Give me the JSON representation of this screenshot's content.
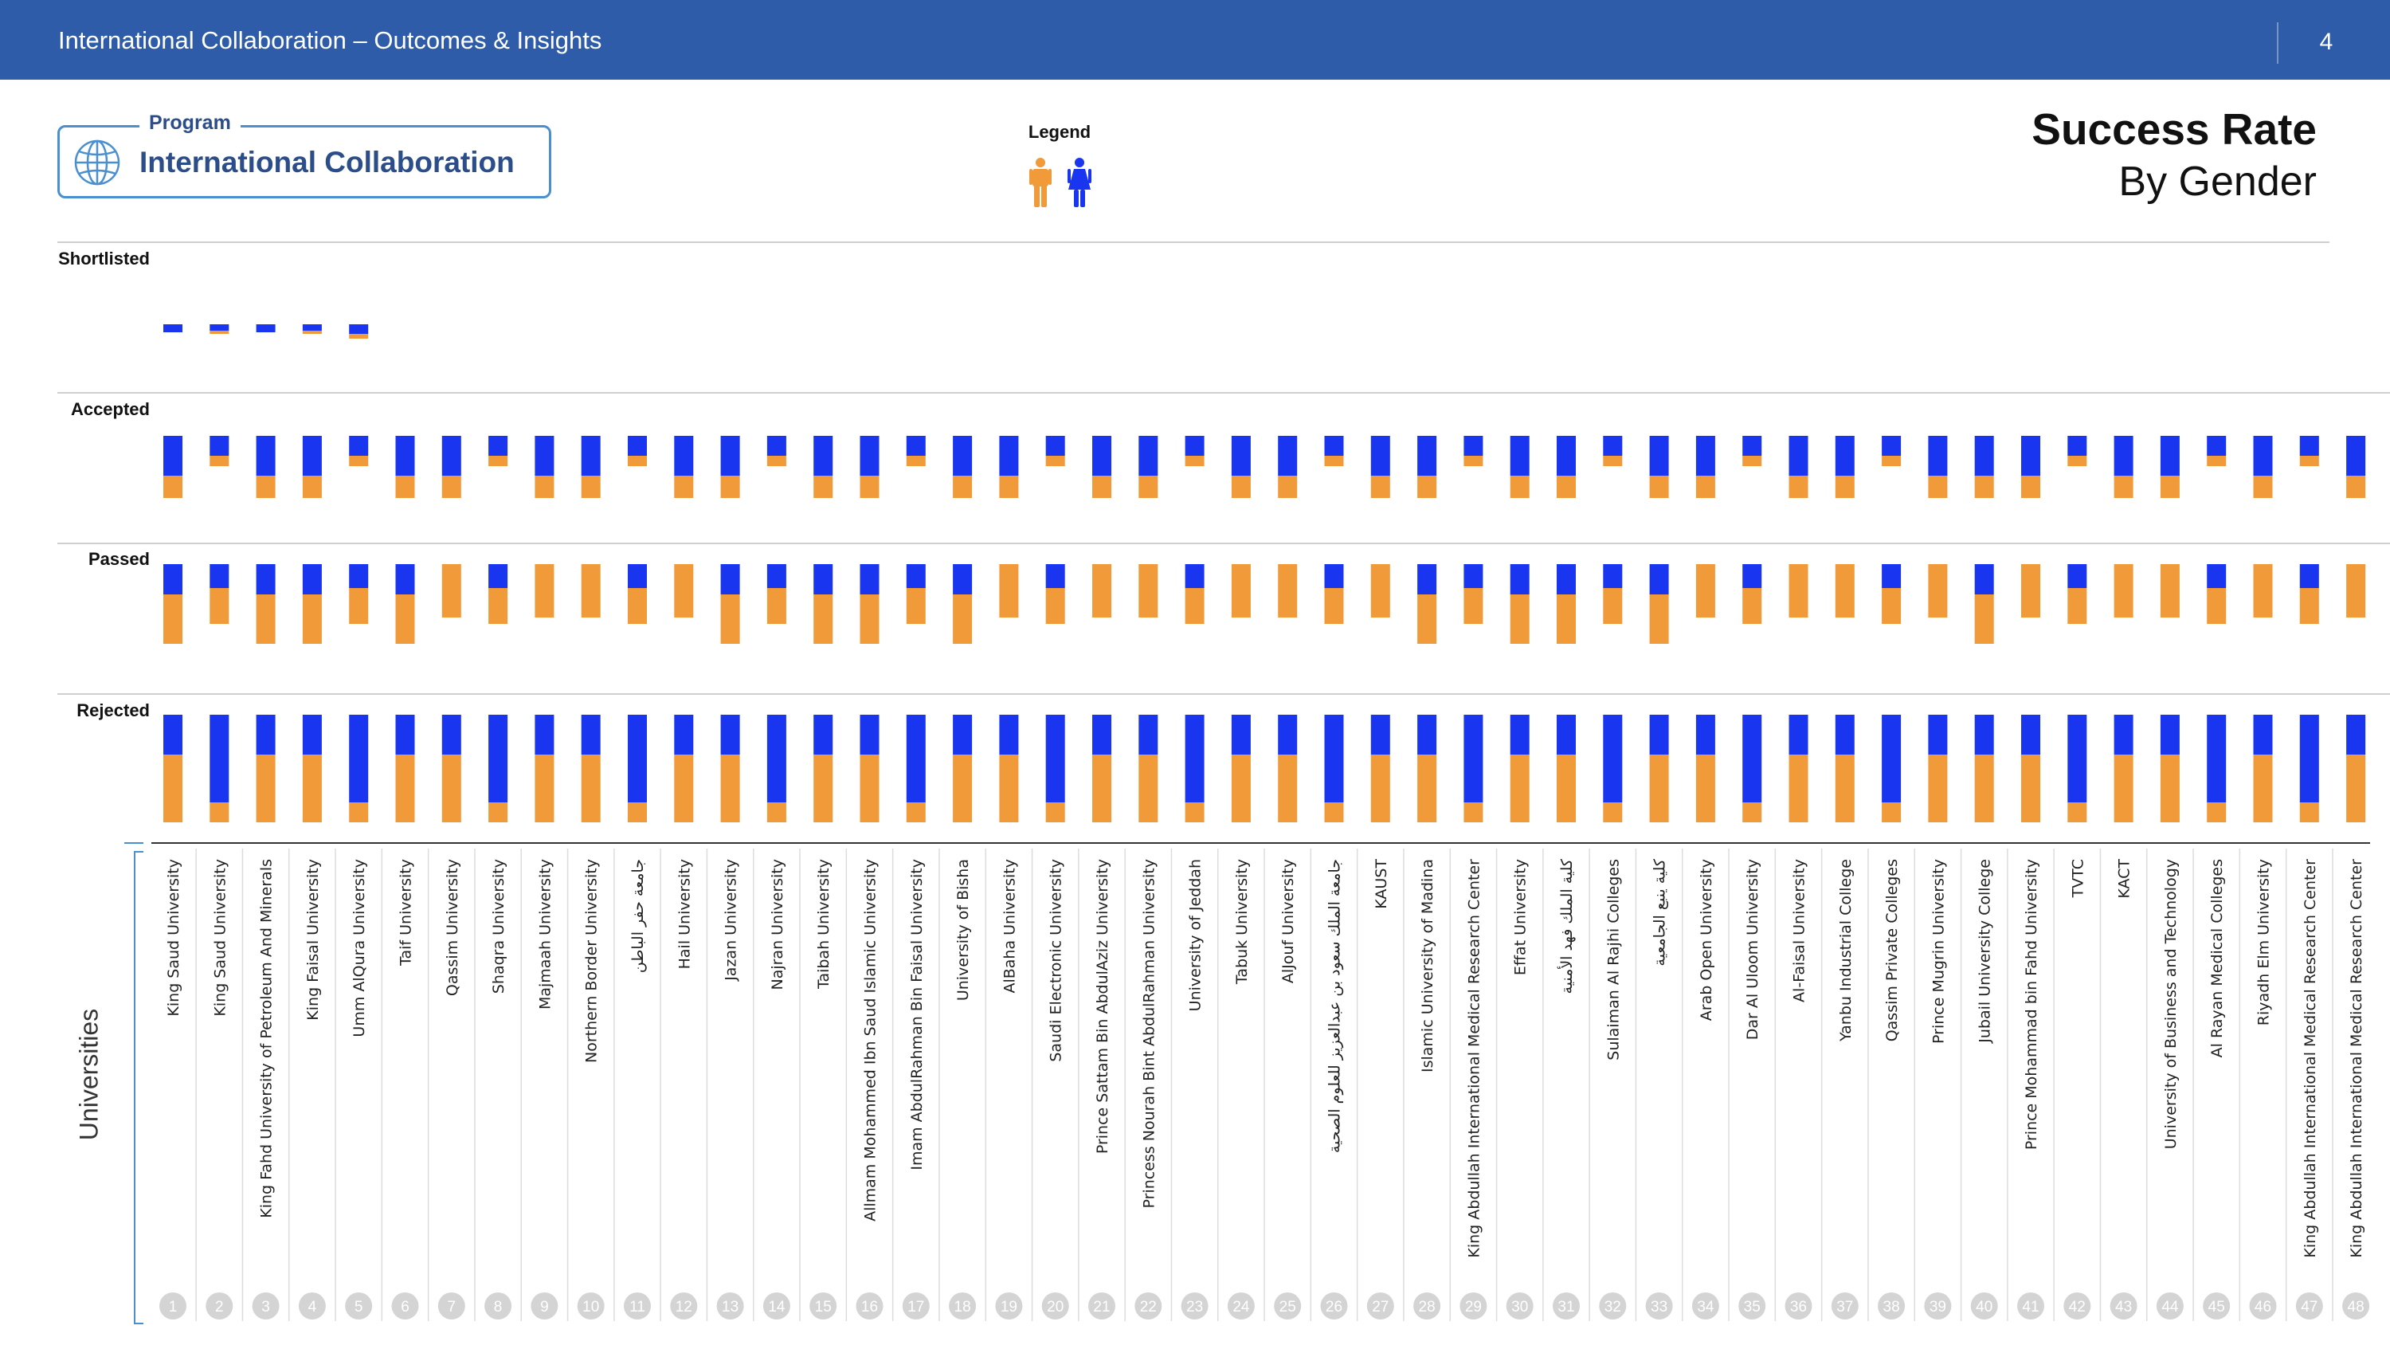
{
  "header": {
    "title": "International Collaboration – Outcomes & Insights",
    "page_number": "4"
  },
  "program": {
    "caption": "Program",
    "name": "International Collaboration",
    "icon": "globe-icon"
  },
  "legend": {
    "title": "Legend",
    "items": [
      {
        "name": "male-icon",
        "color": "#f09a3a"
      },
      {
        "name": "female-icon",
        "color": "#1a35f0"
      }
    ]
  },
  "page_title": {
    "main": "Success Rate",
    "sub": "By Gender"
  },
  "axis": {
    "title": "Universities"
  },
  "colors": {
    "male": "#f09a3a",
    "female": "#1a35f0"
  },
  "chart_data": {
    "type": "bar",
    "stacked": true,
    "series_colors": {
      "male": "#f09a3a",
      "female": "#1a35f0"
    },
    "stages": [
      "Shortlisted",
      "Accepted",
      "Passed",
      "Rejected"
    ],
    "categories": [
      "King Saud University",
      "King Saud University",
      "King Fahd University of Petroleum And Minerals",
      "King Faisal University",
      "Umm AlQura University",
      "Taif University",
      "Qassim University",
      "Shaqra University",
      "Majmaah University",
      "Northern Border University",
      "جامعة حفر الباطن",
      "Hail University",
      "Jazan University",
      "Najran University",
      "Taibah University",
      "Allmam Mohammed Ibn Saud Islamic University",
      "Imam AbdulRahman Bin Faisal University",
      "University of Bisha",
      "AlBaha University",
      "Saudi Electronic University",
      "Prince Sattam Bin AbdulAziz University",
      "Princess Nourah Bint AbdulRahman University",
      "University of Jeddah",
      "Tabuk University",
      "AlJouf University",
      "جامعة الملك سعود بن عبدالعزيز للعلوم الصحية",
      "KAUST",
      "Islamic University of Madina",
      "King Abdullah International Medical Research Center",
      "Effat University",
      "كلية الملك فهد الأمنية",
      "Sulaiman Al Rajhi Colleges",
      "كلية ينبع الجامعية",
      "Arab Open University",
      "Dar Al Uloom University",
      "Al-Faisal University",
      "Yanbu Industrial College",
      "Qassim Private Colleges",
      "Prince Mugrin University",
      "Jubail University College",
      "Prince Mohammad bin Fahd University",
      "TVTC",
      "KACT",
      "University of Business and Technology",
      "Al Rayan Medical Colleges",
      "Riyadh Elm University",
      "King Abdullah International Medical Research Center",
      "King Abdullah International Medical Research Center"
    ],
    "series": [
      {
        "stage": "Shortlisted",
        "female": [
          10,
          8,
          10,
          8,
          12,
          0,
          0,
          0,
          0,
          0,
          0,
          0,
          0,
          0,
          0,
          0,
          0,
          0,
          0,
          0,
          0,
          0,
          0,
          0,
          0,
          0,
          0,
          0,
          0,
          0,
          0,
          0,
          0,
          0,
          0,
          0,
          0,
          0,
          0,
          0,
          0,
          0,
          0,
          0,
          0,
          0,
          0,
          0
        ],
        "male": [
          0,
          4,
          0,
          4,
          6,
          0,
          0,
          0,
          0,
          0,
          0,
          0,
          0,
          0,
          0,
          0,
          0,
          0,
          0,
          0,
          0,
          0,
          0,
          0,
          0,
          0,
          0,
          0,
          0,
          0,
          0,
          0,
          0,
          0,
          0,
          0,
          0,
          0,
          0,
          0,
          0,
          0,
          0,
          0,
          0,
          0,
          0,
          0
        ]
      },
      {
        "stage": "Accepted",
        "female": [
          50,
          25,
          50,
          50,
          25,
          50,
          50,
          25,
          50,
          50,
          25,
          50,
          50,
          25,
          50,
          50,
          25,
          50,
          50,
          25,
          50,
          50,
          25,
          50,
          50,
          25,
          50,
          50,
          25,
          50,
          50,
          25,
          50,
          50,
          25,
          50,
          50,
          25,
          50,
          50,
          50,
          25,
          50,
          50,
          25,
          50,
          25,
          50
        ],
        "male": [
          28,
          13,
          28,
          28,
          13,
          28,
          28,
          13,
          28,
          28,
          13,
          28,
          28,
          13,
          28,
          28,
          13,
          28,
          28,
          13,
          28,
          28,
          13,
          28,
          28,
          13,
          28,
          28,
          13,
          28,
          28,
          13,
          28,
          28,
          13,
          28,
          28,
          13,
          28,
          28,
          28,
          13,
          28,
          28,
          13,
          28,
          13,
          28
        ]
      },
      {
        "stage": "Passed",
        "female": [
          38,
          30,
          38,
          38,
          30,
          38,
          0,
          30,
          0,
          0,
          30,
          0,
          38,
          30,
          38,
          38,
          30,
          38,
          0,
          30,
          0,
          0,
          30,
          0,
          0,
          30,
          0,
          38,
          30,
          38,
          38,
          30,
          38,
          0,
          30,
          0,
          0,
          30,
          0,
          38,
          0,
          30,
          0,
          0,
          30,
          0,
          30,
          0
        ],
        "male": [
          62,
          45,
          62,
          62,
          45,
          62,
          67,
          45,
          67,
          67,
          45,
          67,
          62,
          45,
          62,
          62,
          45,
          62,
          67,
          45,
          67,
          67,
          45,
          67,
          67,
          45,
          67,
          62,
          45,
          62,
          62,
          45,
          62,
          67,
          45,
          67,
          67,
          45,
          67,
          62,
          67,
          45,
          67,
          67,
          45,
          67,
          45,
          67
        ]
      },
      {
        "stage": "Rejected",
        "female": [
          50,
          110,
          50,
          50,
          110,
          50,
          50,
          110,
          50,
          50,
          110,
          50,
          50,
          110,
          50,
          50,
          110,
          50,
          50,
          110,
          50,
          50,
          110,
          50,
          50,
          110,
          50,
          50,
          110,
          50,
          50,
          110,
          50,
          50,
          110,
          50,
          50,
          110,
          50,
          50,
          50,
          110,
          50,
          50,
          110,
          50,
          110,
          50
        ],
        "male": [
          85,
          25,
          85,
          85,
          25,
          85,
          85,
          25,
          85,
          85,
          25,
          85,
          85,
          25,
          85,
          85,
          25,
          85,
          85,
          25,
          85,
          85,
          25,
          85,
          85,
          25,
          85,
          85,
          25,
          85,
          85,
          25,
          85,
          85,
          25,
          85,
          85,
          25,
          85,
          85,
          85,
          25,
          85,
          85,
          25,
          85,
          25,
          85
        ]
      }
    ],
    "grid": false,
    "legend_position": "top-center"
  }
}
